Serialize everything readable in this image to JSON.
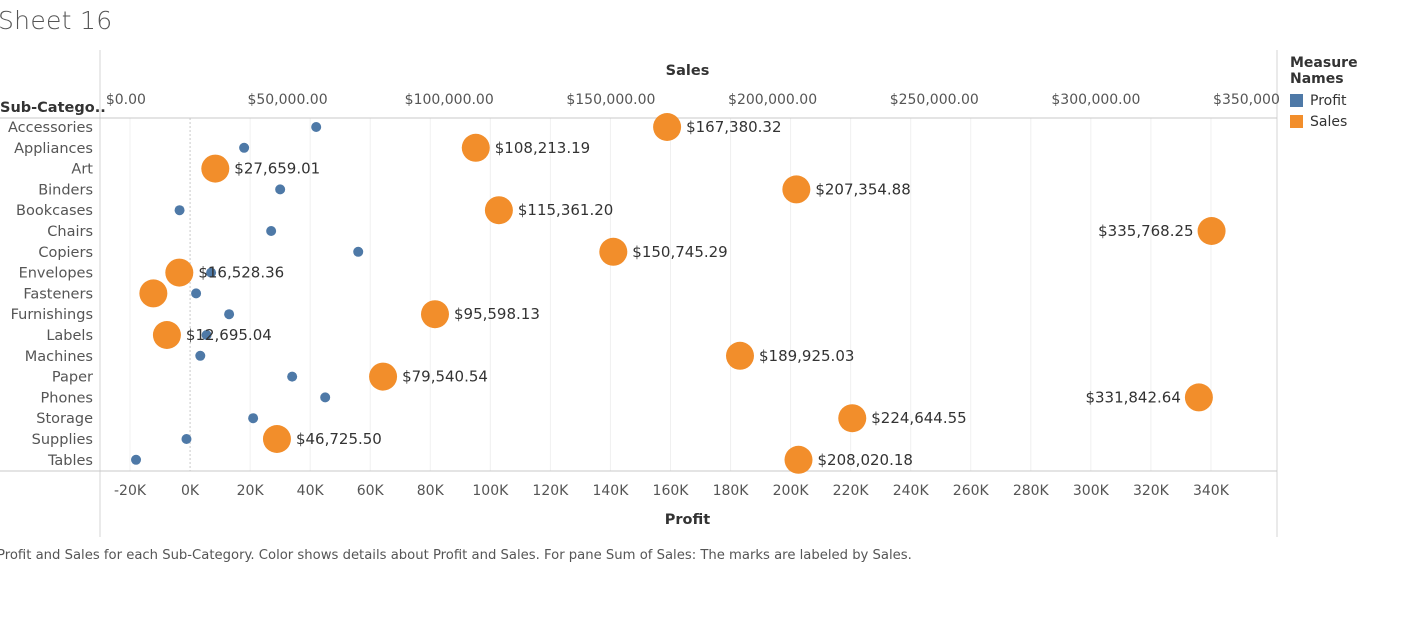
{
  "title": "Sheet 16",
  "caption": "Profit and Sales for each Sub-Category.  Color shows details about Profit and Sales.  For pane Sum of Sales:  The marks are labeled by Sales.",
  "legend": {
    "title": "Measure Names",
    "items": [
      {
        "label": "Profit",
        "color": "#4e79a7"
      },
      {
        "label": "Sales",
        "color": "#f28e2b"
      }
    ]
  },
  "chart_data": {
    "type": "scatter",
    "row_header": "Sub-Catego..",
    "categories": [
      "Accessories",
      "Appliances",
      "Art",
      "Binders",
      "Bookcases",
      "Chairs",
      "Copiers",
      "Envelopes",
      "Fasteners",
      "Furnishings",
      "Labels",
      "Machines",
      "Paper",
      "Phones",
      "Storage",
      "Supplies",
      "Tables"
    ],
    "top_axis": {
      "label": "Sales",
      "range": [
        -8000,
        356000
      ],
      "ticks": [
        0,
        50000,
        100000,
        150000,
        200000,
        250000,
        300000,
        350000
      ],
      "tick_labels": [
        "$0.00",
        "$50,000.00",
        "$100,000.00",
        "$150,000.00",
        "$200,000.00",
        "$250,000.00",
        "$300,000.00",
        "$350,000.00"
      ]
    },
    "bottom_axis": {
      "label": "Profit",
      "range": [
        -30000,
        362000
      ],
      "ticks": [
        -20000,
        0,
        20000,
        40000,
        60000,
        80000,
        100000,
        120000,
        140000,
        160000,
        180000,
        200000,
        220000,
        240000,
        260000,
        280000,
        300000,
        320000,
        340000
      ],
      "tick_labels": [
        "-20K",
        "0K",
        "20K",
        "40K",
        "60K",
        "80K",
        "100K",
        "120K",
        "140K",
        "160K",
        "180K",
        "200K",
        "220K",
        "240K",
        "260K",
        "280K",
        "300K",
        "320K",
        "340K"
      ]
    },
    "grid": true,
    "series": [
      {
        "name": "Profit",
        "color": "#4e79a7",
        "values": [
          42000,
          18000,
          6500,
          30000,
          -3500,
          27000,
          56000,
          7000,
          2000,
          13000,
          5500,
          3400,
          34000,
          45000,
          21000,
          -1200,
          -18000
        ]
      },
      {
        "name": "Sales",
        "color": "#f28e2b",
        "values": [
          167380.32,
          108213.19,
          27659.01,
          207354.88,
          115361.2,
          335768.25,
          150745.29,
          16528.36,
          8500,
          95598.13,
          12695.04,
          189925.03,
          79540.54,
          331842.64,
          224644.55,
          46725.5,
          208020.18
        ],
        "labels": [
          "$167,380.32",
          "$108,213.19",
          "$27,659.01",
          "$207,354.88",
          "$115,361.20",
          "$335,768.25",
          "$150,745.29",
          "$16,528.36",
          "",
          "$95,598.13",
          "$12,695.04",
          "$189,925.03",
          "$79,540.54",
          "$331,842.64",
          "$224,644.55",
          "$46,725.50",
          "$208,020.18"
        ],
        "label_side": [
          "right",
          "right",
          "right",
          "right",
          "right",
          "left",
          "right",
          "right",
          "right",
          "right",
          "right",
          "right",
          "right",
          "left",
          "right",
          "right",
          "right"
        ]
      }
    ]
  }
}
